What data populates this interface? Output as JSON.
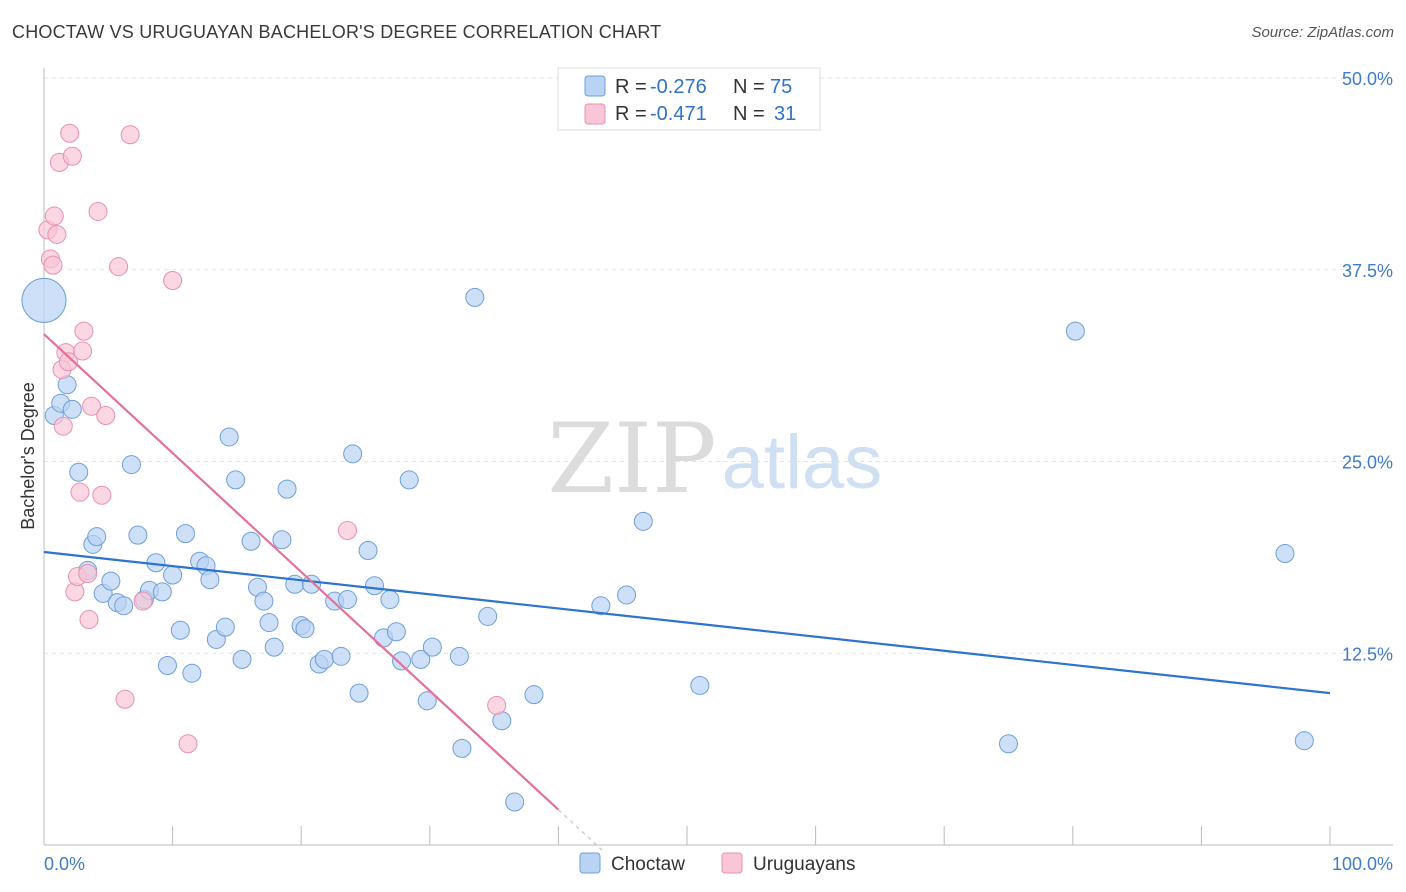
{
  "title": "CHOCTAW VS URUGUAYAN BACHELOR'S DEGREE CORRELATION CHART",
  "source": "Source: ZipAtlas.com",
  "watermark": {
    "zip": "ZIP",
    "atlas": "atlas"
  },
  "colors": {
    "choctaw_fill": "#b9d3f3",
    "choctaw_stroke": "#6f9fd8",
    "choctaw_line": "#2d74d0",
    "uruguayan_fill": "#f8c6d6",
    "uruguayan_stroke": "#ea90ae",
    "uruguayan_line": "#e5709a",
    "tick_text": "#3f7bc9",
    "grid": "#e3e3e3"
  },
  "legend": {
    "r_label": "R =",
    "n_label": "N =",
    "rows": [
      {
        "r": "-0.276",
        "n": "75"
      },
      {
        "r": "-0.471",
        "n": "31"
      }
    ]
  },
  "chart_data": {
    "type": "scatter",
    "xlabel": "",
    "ylabel": "Bachelor's Degree",
    "xlim": [
      0,
      100
    ],
    "ylim": [
      0,
      50
    ],
    "x_tick_labels": [
      "0.0%",
      "100.0%"
    ],
    "y_ticks": [
      12.5,
      25.0,
      37.5,
      50.0
    ],
    "y_tick_labels": [
      "12.5%",
      "25.0%",
      "37.5%",
      "50.0%"
    ],
    "grid": true,
    "legend_position": "top-center",
    "series": [
      {
        "name": "Choctaw",
        "trendline": {
          "x": [
            0,
            100
          ],
          "y": [
            19.1,
            9.9
          ]
        },
        "points": [
          {
            "x": 0.0,
            "y": 35.5,
            "big": true
          },
          {
            "x": 0.8,
            "y": 28.0
          },
          {
            "x": 1.3,
            "y": 28.8
          },
          {
            "x": 1.8,
            "y": 30.0
          },
          {
            "x": 2.2,
            "y": 28.4
          },
          {
            "x": 2.7,
            "y": 24.3
          },
          {
            "x": 3.4,
            "y": 17.9
          },
          {
            "x": 3.8,
            "y": 19.6
          },
          {
            "x": 4.1,
            "y": 20.1
          },
          {
            "x": 4.6,
            "y": 16.4
          },
          {
            "x": 5.2,
            "y": 17.2
          },
          {
            "x": 5.7,
            "y": 15.8
          },
          {
            "x": 6.2,
            "y": 15.6
          },
          {
            "x": 6.8,
            "y": 24.8
          },
          {
            "x": 7.3,
            "y": 20.2
          },
          {
            "x": 7.8,
            "y": 16.0
          },
          {
            "x": 8.2,
            "y": 16.6
          },
          {
            "x": 8.7,
            "y": 18.4
          },
          {
            "x": 9.2,
            "y": 16.5
          },
          {
            "x": 9.6,
            "y": 11.7
          },
          {
            "x": 10.0,
            "y": 17.6
          },
          {
            "x": 10.6,
            "y": 14.0
          },
          {
            "x": 11.0,
            "y": 20.3
          },
          {
            "x": 11.5,
            "y": 11.2
          },
          {
            "x": 12.1,
            "y": 18.5
          },
          {
            "x": 12.6,
            "y": 18.2
          },
          {
            "x": 12.9,
            "y": 17.3
          },
          {
            "x": 13.4,
            "y": 13.4
          },
          {
            "x": 14.1,
            "y": 14.2
          },
          {
            "x": 14.4,
            "y": 26.6
          },
          {
            "x": 14.9,
            "y": 23.8
          },
          {
            "x": 15.4,
            "y": 12.1
          },
          {
            "x": 16.1,
            "y": 19.8
          },
          {
            "x": 16.6,
            "y": 16.8
          },
          {
            "x": 17.1,
            "y": 15.9
          },
          {
            "x": 17.5,
            "y": 14.5
          },
          {
            "x": 17.9,
            "y": 12.9
          },
          {
            "x": 18.5,
            "y": 19.9
          },
          {
            "x": 18.9,
            "y": 23.2
          },
          {
            "x": 19.5,
            "y": 17.0
          },
          {
            "x": 20.0,
            "y": 14.3
          },
          {
            "x": 20.3,
            "y": 14.1
          },
          {
            "x": 20.8,
            "y": 17.0
          },
          {
            "x": 21.4,
            "y": 11.8
          },
          {
            "x": 21.8,
            "y": 12.1
          },
          {
            "x": 22.6,
            "y": 15.9
          },
          {
            "x": 23.1,
            "y": 12.3
          },
          {
            "x": 23.6,
            "y": 16.0
          },
          {
            "x": 24.0,
            "y": 25.5
          },
          {
            "x": 24.5,
            "y": 9.9
          },
          {
            "x": 25.2,
            "y": 19.2
          },
          {
            "x": 25.7,
            "y": 16.9
          },
          {
            "x": 26.4,
            "y": 13.5
          },
          {
            "x": 26.9,
            "y": 16.0
          },
          {
            "x": 27.4,
            "y": 13.9
          },
          {
            "x": 27.8,
            "y": 12.0
          },
          {
            "x": 28.4,
            "y": 23.8
          },
          {
            "x": 29.3,
            "y": 12.1
          },
          {
            "x": 29.8,
            "y": 9.4
          },
          {
            "x": 30.2,
            "y": 12.9
          },
          {
            "x": 32.3,
            "y": 12.3
          },
          {
            "x": 32.5,
            "y": 6.3
          },
          {
            "x": 33.5,
            "y": 35.7
          },
          {
            "x": 34.5,
            "y": 14.9
          },
          {
            "x": 35.6,
            "y": 8.1
          },
          {
            "x": 36.6,
            "y": 2.8
          },
          {
            "x": 38.1,
            "y": 9.8
          },
          {
            "x": 43.3,
            "y": 15.6
          },
          {
            "x": 45.3,
            "y": 16.3
          },
          {
            "x": 46.6,
            "y": 21.1
          },
          {
            "x": 51.0,
            "y": 10.4
          },
          {
            "x": 75.0,
            "y": 6.6
          },
          {
            "x": 80.2,
            "y": 33.5
          },
          {
            "x": 96.5,
            "y": 19.0
          },
          {
            "x": 98.0,
            "y": 6.8
          }
        ]
      },
      {
        "name": "Uruguayans",
        "trendline": {
          "x": [
            0,
            40
          ],
          "y": [
            33.3,
            2.3
          ]
        },
        "points": [
          {
            "x": 0.3,
            "y": 40.1
          },
          {
            "x": 0.5,
            "y": 38.2
          },
          {
            "x": 0.7,
            "y": 37.8
          },
          {
            "x": 0.8,
            "y": 41.0
          },
          {
            "x": 1.0,
            "y": 39.8
          },
          {
            "x": 1.2,
            "y": 44.5
          },
          {
            "x": 1.4,
            "y": 31.0
          },
          {
            "x": 1.5,
            "y": 27.3
          },
          {
            "x": 1.7,
            "y": 32.1
          },
          {
            "x": 1.9,
            "y": 31.5
          },
          {
            "x": 2.0,
            "y": 46.4
          },
          {
            "x": 2.2,
            "y": 44.9
          },
          {
            "x": 2.4,
            "y": 16.5
          },
          {
            "x": 2.6,
            "y": 17.5
          },
          {
            "x": 2.8,
            "y": 23.0
          },
          {
            "x": 3.0,
            "y": 32.2
          },
          {
            "x": 3.1,
            "y": 33.5
          },
          {
            "x": 3.4,
            "y": 17.7
          },
          {
            "x": 3.5,
            "y": 14.7
          },
          {
            "x": 3.7,
            "y": 28.6
          },
          {
            "x": 4.2,
            "y": 41.3
          },
          {
            "x": 4.5,
            "y": 22.8
          },
          {
            "x": 4.8,
            "y": 28.0
          },
          {
            "x": 5.8,
            "y": 37.7
          },
          {
            "x": 6.3,
            "y": 9.5
          },
          {
            "x": 6.7,
            "y": 46.3
          },
          {
            "x": 7.7,
            "y": 15.9
          },
          {
            "x": 10.0,
            "y": 36.8
          },
          {
            "x": 11.2,
            "y": 6.6
          },
          {
            "x": 23.6,
            "y": 20.5
          },
          {
            "x": 35.2,
            "y": 9.1
          }
        ]
      }
    ]
  }
}
